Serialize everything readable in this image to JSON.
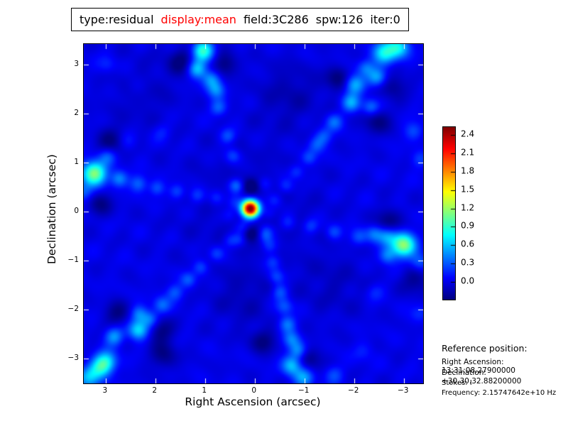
{
  "title_bar": {
    "segments": [
      {
        "text": "type:residual",
        "color": "#000000"
      },
      {
        "text": "display:mean",
        "color": "#ff0000"
      },
      {
        "text": "field:3C286",
        "color": "#000000"
      },
      {
        "text": "spw:126",
        "color": "#000000"
      },
      {
        "text": "iter:0",
        "color": "#000000"
      }
    ]
  },
  "chart_data": {
    "type": "heatmap",
    "title": "type:residual display:mean field:3C286 spw:126 iter:0",
    "xlabel": "Right Ascension (arcsec)",
    "ylabel": "Declination (arcsec)",
    "x_ticks": [
      3,
      2,
      1,
      0,
      -1,
      -2,
      -3
    ],
    "y_ticks": [
      3,
      2,
      1,
      0,
      -1,
      -2,
      -3
    ],
    "x_range": [
      3.44,
      -3.39
    ],
    "y_range": [
      3.42,
      -3.51
    ],
    "colormap": "jet",
    "value_range": [
      -0.29,
      2.53
    ],
    "background_level": 0.0,
    "noise_amp": 0.045,
    "colorbar_ticks": [
      2.4,
      2.1,
      1.8,
      1.5,
      1.2,
      0.9,
      0.6,
      0.3,
      0.0
    ],
    "peak": {
      "ra": 0.09,
      "dec": 0.06,
      "value": 2.6
    },
    "blobs": [
      [
        0.09,
        0.06,
        2.75,
        0.12
      ],
      [
        0.4,
        0.54,
        0.2,
        0.1
      ],
      [
        -0.2,
        0.57,
        0.2,
        0.1
      ],
      [
        0.5,
        -0.07,
        0.18,
        0.1
      ],
      [
        -0.29,
        -0.04,
        0.18,
        0.1
      ],
      [
        0.3,
        -0.58,
        0.2,
        0.1
      ],
      [
        -0.21,
        -0.51,
        0.2,
        0.1
      ],
      [
        0.09,
        0.51,
        -0.3,
        0.12
      ],
      [
        0.09,
        -0.44,
        -0.3,
        0.12
      ],
      [
        0.09,
        0.06,
        -0.1,
        0.95
      ],
      [
        0.34,
        0.52,
        0.25,
        0.11
      ],
      [
        0.44,
        1.14,
        0.28,
        0.11
      ],
      [
        0.54,
        1.54,
        0.28,
        0.11
      ],
      [
        0.73,
        2.12,
        0.35,
        0.12
      ],
      [
        0.77,
        2.48,
        0.4,
        0.12
      ],
      [
        0.87,
        2.7,
        0.5,
        0.13
      ],
      [
        1.16,
        2.91,
        0.65,
        0.13
      ],
      [
        1.04,
        3.28,
        0.9,
        0.15
      ],
      [
        1.47,
        3.07,
        -0.3,
        0.2
      ],
      [
        0.61,
        3.0,
        -0.3,
        0.18
      ],
      [
        -0.41,
        0.23,
        0.22,
        0.11
      ],
      [
        -0.63,
        0.52,
        0.25,
        0.11
      ],
      [
        -0.84,
        0.81,
        0.25,
        0.11
      ],
      [
        -1.09,
        1.1,
        0.28,
        0.11
      ],
      [
        -1.24,
        1.36,
        0.3,
        0.12
      ],
      [
        -1.39,
        1.54,
        0.3,
        0.12
      ],
      [
        -1.6,
        1.83,
        0.35,
        0.12
      ],
      [
        -1.94,
        2.22,
        0.5,
        0.13
      ],
      [
        -2.01,
        2.59,
        0.6,
        0.14
      ],
      [
        -2.46,
        2.74,
        0.5,
        0.13
      ],
      [
        -2.6,
        3.23,
        0.75,
        0.16
      ],
      [
        -2.89,
        3.35,
        0.7,
        0.16
      ],
      [
        -2.34,
        2.13,
        0.4,
        0.12
      ],
      [
        -2.24,
        2.93,
        0.35,
        0.12
      ],
      [
        -1.67,
        2.71,
        -0.3,
        0.18
      ],
      [
        -2.46,
        1.84,
        -0.28,
        0.2
      ],
      [
        -2.81,
        2.57,
        -0.25,
        0.18
      ],
      [
        0.4,
        0.17,
        0.22,
        0.11
      ],
      [
        0.77,
        0.28,
        0.25,
        0.11
      ],
      [
        1.16,
        0.33,
        0.25,
        0.11
      ],
      [
        1.56,
        0.41,
        0.28,
        0.11
      ],
      [
        1.97,
        0.48,
        0.3,
        0.11
      ],
      [
        2.34,
        0.57,
        0.35,
        0.12
      ],
      [
        2.73,
        0.67,
        0.45,
        0.12
      ],
      [
        3.23,
        0.78,
        1.15,
        0.17
      ],
      [
        3.44,
        0.39,
        0.3,
        0.13
      ],
      [
        2.97,
        1.12,
        0.3,
        0.12
      ],
      [
        2.9,
        1.45,
        -0.25,
        0.2
      ],
      [
        3.1,
        0.15,
        -0.25,
        0.18
      ],
      [
        -0.67,
        -0.23,
        0.22,
        0.11
      ],
      [
        -1.13,
        -0.3,
        0.25,
        0.11
      ],
      [
        -1.6,
        -0.42,
        0.28,
        0.11
      ],
      [
        -2.09,
        -0.52,
        0.3,
        0.12
      ],
      [
        -2.41,
        -0.46,
        0.35,
        0.12
      ],
      [
        -2.66,
        -0.52,
        0.45,
        0.13
      ],
      [
        -2.99,
        -0.68,
        1.15,
        0.17
      ],
      [
        -2.67,
        -0.9,
        0.4,
        0.12
      ],
      [
        -3.31,
        -1.04,
        0.35,
        0.13
      ],
      [
        -3.2,
        1.64,
        0.28,
        0.13
      ],
      [
        -3.31,
        1.06,
        0.22,
        0.12
      ],
      [
        -2.7,
        -0.18,
        -0.28,
        0.18
      ],
      [
        -3.24,
        -1.4,
        -0.25,
        0.2
      ],
      [
        0.23,
        -0.32,
        0.22,
        0.11
      ],
      [
        0.49,
        -0.59,
        0.24,
        0.11
      ],
      [
        0.77,
        -0.86,
        0.26,
        0.11
      ],
      [
        1.09,
        -1.14,
        0.28,
        0.11
      ],
      [
        1.34,
        -1.39,
        0.3,
        0.11
      ],
      [
        1.61,
        -1.65,
        0.32,
        0.12
      ],
      [
        1.87,
        -1.91,
        0.35,
        0.12
      ],
      [
        2.11,
        -2.2,
        0.4,
        0.12
      ],
      [
        2.33,
        -2.09,
        0.4,
        0.12
      ],
      [
        2.34,
        -2.42,
        0.7,
        0.14
      ],
      [
        2.83,
        -2.55,
        0.5,
        0.13
      ],
      [
        2.99,
        -3.06,
        0.65,
        0.15
      ],
      [
        3.11,
        -3.2,
        0.6,
        0.15
      ],
      [
        3.34,
        -3.39,
        0.55,
        0.15
      ],
      [
        1.9,
        -2.43,
        -0.3,
        0.18
      ],
      [
        2.76,
        -2.09,
        -0.28,
        0.18
      ],
      [
        1.83,
        -2.94,
        -0.25,
        0.2
      ],
      [
        -0.23,
        -0.39,
        0.22,
        0.11
      ],
      [
        -0.3,
        -0.71,
        0.24,
        0.11
      ],
      [
        -0.37,
        -1.03,
        0.26,
        0.11
      ],
      [
        -0.44,
        -1.33,
        0.28,
        0.11
      ],
      [
        -0.51,
        -1.65,
        0.3,
        0.11
      ],
      [
        -0.6,
        -1.94,
        0.33,
        0.12
      ],
      [
        -0.66,
        -2.3,
        0.4,
        0.12
      ],
      [
        -0.74,
        -2.61,
        0.38,
        0.12
      ],
      [
        -0.87,
        -2.84,
        0.45,
        0.12
      ],
      [
        -0.74,
        -3.14,
        0.6,
        0.14
      ],
      [
        -0.99,
        -3.39,
        0.5,
        0.14
      ],
      [
        -0.17,
        -2.65,
        -0.28,
        0.18
      ],
      [
        -1.1,
        -3.01,
        -0.25,
        0.18
      ],
      [
        -1.6,
        -3.33,
        0.25,
        0.13
      ],
      [
        -2.41,
        -1.65,
        0.18,
        0.13
      ],
      [
        -2.17,
        -2.86,
        0.15,
        0.14
      ],
      [
        -3.31,
        -2.09,
        0.18,
        0.13
      ],
      [
        2.54,
        1.43,
        0.15,
        0.13
      ],
      [
        1.87,
        1.62,
        0.15,
        0.13
      ],
      [
        2.97,
        3.0,
        0.18,
        0.13
      ],
      [
        2.4,
        2.57,
        0.12,
        0.15
      ],
      [
        -0.7,
        2.4,
        -0.15,
        0.45
      ],
      [
        2.26,
        2.42,
        -0.1,
        0.5
      ],
      [
        0.26,
        -1.8,
        -0.12,
        0.4
      ],
      [
        -1.6,
        -1.5,
        -0.1,
        0.5
      ]
    ]
  },
  "reference": {
    "heading": "Reference position:",
    "lines": [
      "Right Ascension: 13:31:08.27900000",
      "Declination: +30.30.32.88200000",
      "Stokes: I",
      "Frequency: 2.15747642e+10 Hz"
    ]
  }
}
